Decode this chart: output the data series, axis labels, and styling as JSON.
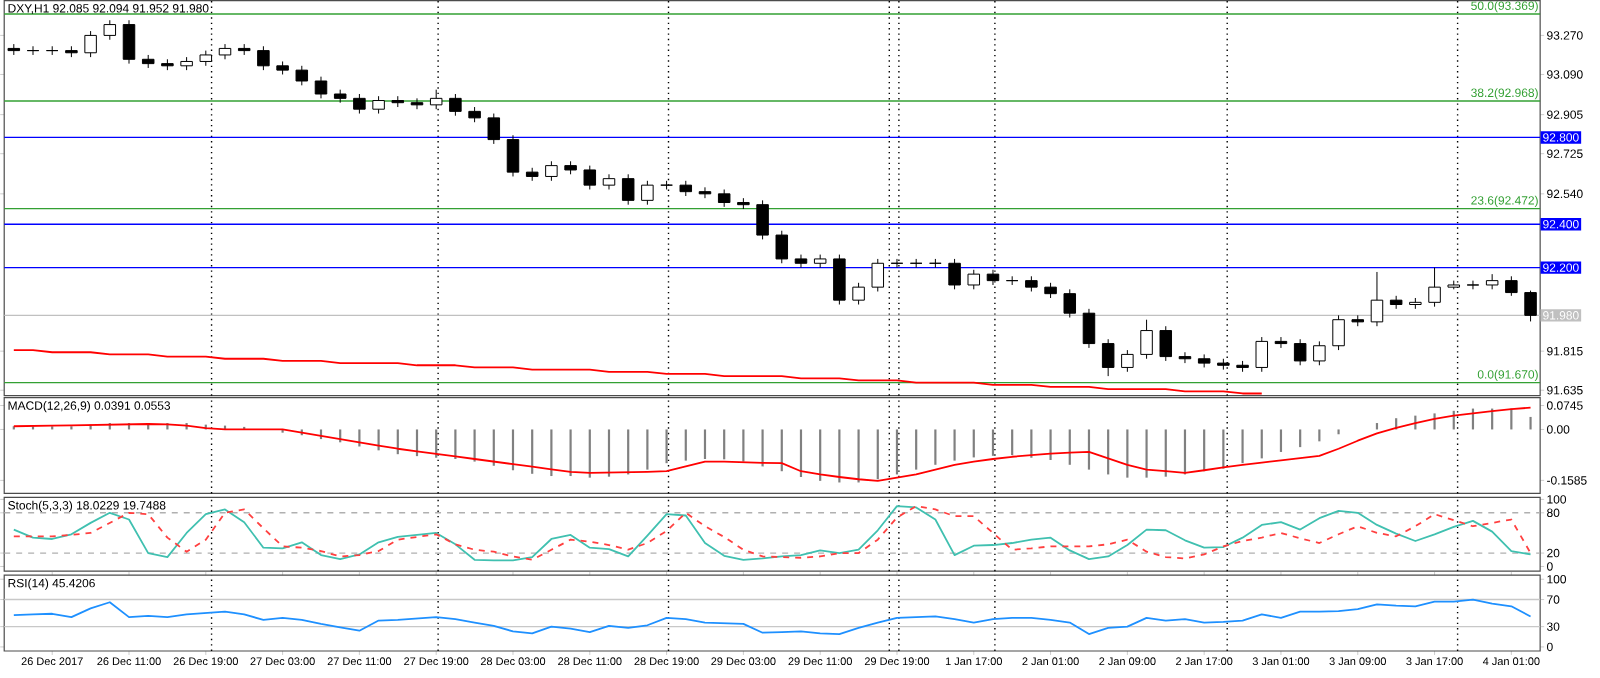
{
  "chart_data": [
    {
      "type": "candlestick",
      "title": "DXY,H1 92.085 92.094 91.952 91.980",
      "categories": [
        null,
        null,
        null,
        null,
        null,
        null,
        null,
        null,
        null,
        null,
        null,
        null,
        null,
        null,
        null,
        null,
        null,
        null,
        null,
        null,
        null,
        null,
        null,
        null,
        null,
        null,
        null,
        null,
        null,
        null,
        null,
        null,
        null,
        null,
        null,
        null,
        null,
        null,
        null,
        null,
        null,
        null,
        null,
        null,
        null,
        null,
        null,
        null,
        null,
        null,
        null,
        null,
        null,
        null,
        null,
        null,
        null,
        null,
        null,
        null,
        null,
        null,
        null,
        null,
        null,
        null,
        null,
        null,
        null,
        null,
        null,
        null,
        null,
        null,
        null,
        null,
        null,
        null,
        null,
        null
      ],
      "ohlc": [
        [
          93.21,
          93.23,
          93.18,
          93.2
        ],
        [
          93.2,
          93.22,
          93.18,
          93.2
        ],
        [
          93.2,
          93.22,
          93.18,
          93.2
        ],
        [
          93.2,
          93.22,
          93.17,
          93.19
        ],
        [
          93.19,
          93.29,
          93.17,
          93.27
        ],
        [
          93.27,
          93.34,
          93.25,
          93.32
        ],
        [
          93.32,
          93.34,
          93.14,
          93.16
        ],
        [
          93.16,
          93.18,
          93.12,
          93.14
        ],
        [
          93.14,
          93.16,
          93.11,
          93.13
        ],
        [
          93.13,
          93.17,
          93.11,
          93.15
        ],
        [
          93.15,
          93.2,
          93.13,
          93.18
        ],
        [
          93.18,
          93.23,
          93.16,
          93.21
        ],
        [
          93.21,
          93.23,
          93.18,
          93.2
        ],
        [
          93.2,
          93.22,
          93.11,
          93.13
        ],
        [
          93.13,
          93.15,
          93.09,
          93.11
        ],
        [
          93.11,
          93.13,
          93.04,
          93.06
        ],
        [
          93.06,
          93.08,
          92.98,
          93.0
        ],
        [
          93.0,
          93.02,
          92.96,
          92.98
        ],
        [
          92.98,
          93.0,
          92.91,
          92.93
        ],
        [
          92.93,
          92.99,
          92.91,
          92.97
        ],
        [
          92.97,
          92.99,
          92.94,
          92.96
        ],
        [
          92.96,
          92.98,
          92.93,
          92.95
        ],
        [
          92.95,
          93.02,
          92.93,
          92.98
        ],
        [
          92.98,
          93.0,
          92.9,
          92.92
        ],
        [
          92.92,
          92.94,
          92.87,
          92.89
        ],
        [
          92.89,
          92.91,
          92.77,
          92.79
        ],
        [
          92.79,
          92.81,
          92.62,
          92.64
        ],
        [
          92.64,
          92.66,
          92.6,
          92.62
        ],
        [
          92.62,
          92.69,
          92.6,
          92.67
        ],
        [
          92.67,
          92.69,
          92.63,
          92.65
        ],
        [
          92.65,
          92.67,
          92.56,
          92.58
        ],
        [
          92.58,
          92.63,
          92.56,
          92.61
        ],
        [
          92.61,
          92.63,
          92.49,
          92.51
        ],
        [
          92.51,
          92.6,
          92.49,
          92.58
        ],
        [
          92.58,
          92.6,
          92.56,
          92.58
        ],
        [
          92.58,
          92.6,
          92.53,
          92.55
        ],
        [
          92.55,
          92.57,
          92.52,
          92.54
        ],
        [
          92.54,
          92.56,
          92.48,
          92.5
        ],
        [
          92.5,
          92.52,
          92.47,
          92.49
        ],
        [
          92.49,
          92.51,
          92.33,
          92.35
        ],
        [
          92.35,
          92.37,
          92.22,
          92.24
        ],
        [
          92.24,
          92.26,
          92.2,
          92.22
        ],
        [
          92.22,
          92.26,
          92.2,
          92.24
        ],
        [
          92.24,
          92.26,
          92.03,
          92.05
        ],
        [
          92.05,
          92.13,
          92.03,
          92.11
        ],
        [
          92.11,
          92.24,
          92.09,
          92.22
        ],
        [
          92.22,
          92.24,
          92.2,
          92.22
        ],
        [
          92.22,
          92.24,
          92.2,
          92.22
        ],
        [
          92.22,
          92.24,
          92.2,
          92.22
        ],
        [
          92.22,
          92.24,
          92.1,
          92.12
        ],
        [
          92.12,
          92.19,
          92.1,
          92.17
        ],
        [
          92.17,
          92.19,
          92.12,
          92.14
        ],
        [
          92.14,
          92.16,
          92.12,
          92.14
        ],
        [
          92.14,
          92.16,
          92.09,
          92.11
        ],
        [
          92.11,
          92.13,
          92.06,
          92.08
        ],
        [
          92.08,
          92.1,
          91.97,
          91.99
        ],
        [
          91.99,
          92.01,
          91.83,
          91.85
        ],
        [
          91.85,
          91.87,
          91.7,
          91.74
        ],
        [
          91.74,
          91.82,
          91.72,
          91.8
        ],
        [
          91.8,
          91.96,
          91.78,
          91.91
        ],
        [
          91.91,
          91.93,
          91.77,
          91.79
        ],
        [
          91.79,
          91.81,
          91.76,
          91.78
        ],
        [
          91.78,
          91.8,
          91.74,
          91.76
        ],
        [
          91.76,
          91.78,
          91.73,
          91.75
        ],
        [
          91.75,
          91.77,
          91.72,
          91.74
        ],
        [
          91.74,
          91.88,
          91.72,
          91.86
        ],
        [
          91.86,
          91.88,
          91.83,
          91.85
        ],
        [
          91.85,
          91.87,
          91.75,
          91.77
        ],
        [
          91.77,
          91.86,
          91.75,
          91.84
        ],
        [
          91.84,
          91.98,
          91.82,
          91.96
        ],
        [
          91.96,
          91.98,
          91.93,
          91.95
        ],
        [
          91.95,
          92.18,
          91.93,
          92.05
        ],
        [
          92.05,
          92.07,
          92.01,
          92.03
        ],
        [
          92.03,
          92.06,
          92.01,
          92.04
        ],
        [
          92.04,
          92.2,
          92.02,
          92.11
        ],
        [
          92.11,
          92.14,
          92.1,
          92.12
        ],
        [
          92.12,
          92.14,
          92.1,
          92.12
        ],
        [
          92.12,
          92.17,
          92.1,
          92.14
        ],
        [
          92.14,
          92.16,
          92.07,
          92.085
        ],
        [
          92.085,
          92.094,
          91.952,
          91.98
        ]
      ],
      "series": [
        {
          "type": "line",
          "color": "#ff0000",
          "values": [
            91.82,
            91.82,
            91.81,
            91.81,
            91.81,
            91.8,
            91.8,
            91.8,
            91.79,
            91.79,
            91.79,
            91.78,
            91.78,
            91.78,
            91.77,
            91.77,
            91.77,
            91.76,
            91.76,
            91.76,
            91.76,
            91.75,
            91.75,
            91.75,
            91.74,
            91.74,
            91.74,
            91.73,
            91.73,
            91.73,
            91.73,
            91.72,
            91.72,
            91.72,
            91.71,
            91.71,
            91.71,
            91.7,
            91.7,
            91.7,
            91.7,
            91.69,
            91.69,
            91.69,
            91.68,
            91.68,
            91.68,
            91.67,
            91.67,
            91.67,
            91.67,
            91.66,
            91.66,
            91.66,
            91.65,
            91.65,
            91.65,
            91.64,
            91.64,
            91.64,
            91.64,
            91.63,
            91.63,
            91.63,
            91.62,
            91.62,
            null,
            null,
            null,
            null,
            null,
            null,
            null,
            null,
            null,
            null,
            null,
            null,
            null,
            null
          ]
        }
      ],
      "ylim": [
        91.61,
        93.43
      ],
      "yticks": [
        {
          "value": 91.635,
          "label": "91.635"
        },
        {
          "value": 91.815,
          "label": "91.815"
        },
        {
          "value": 92.54,
          "label": "92.540"
        },
        {
          "value": 92.725,
          "label": "92.725"
        },
        {
          "value": 92.905,
          "label": "92.905"
        },
        {
          "value": 93.09,
          "label": "93.090"
        },
        {
          "value": 93.27,
          "label": "93.270"
        }
      ],
      "tick_labels": "y",
      "ref_lines": [
        {
          "axis": "y",
          "value": 93.369,
          "color": "#33a033"
        },
        {
          "axis": "y",
          "value": 92.968,
          "color": "#33a033"
        },
        {
          "axis": "y",
          "value": 92.472,
          "color": "#33a033"
        },
        {
          "axis": "y",
          "value": 91.67,
          "color": "#33a033"
        },
        {
          "axis": "y",
          "value": 92.8,
          "label": "92.800",
          "color": "#0000ff"
        },
        {
          "axis": "y",
          "value": 92.4,
          "label": "92.400",
          "color": "#0000ff"
        },
        {
          "axis": "y",
          "value": 92.2,
          "label": "92.200",
          "color": "#0000ff"
        },
        {
          "axis": "y",
          "value": 91.98,
          "label": "91.980",
          "color": "#c0c0c0"
        }
      ],
      "grid": "x",
      "annotations": [
        {
          "text": "50.0(93.369)",
          "y": 93.369
        },
        {
          "text": "38.2(92.968)",
          "y": 92.968
        },
        {
          "text": "23.6(92.472)",
          "y": 92.472
        },
        {
          "text": "0.0(91.670)",
          "y": 91.67
        }
      ]
    },
    {
      "type": "bar",
      "title": "MACD(12,26,9) 0.0391 0.0553",
      "categories": [
        null,
        null,
        null,
        null,
        null,
        null,
        null,
        null,
        null,
        null,
        null,
        null,
        null,
        null,
        null,
        null,
        null,
        null,
        null,
        null,
        null,
        null,
        null,
        null,
        null,
        null,
        null,
        null,
        null,
        null,
        null,
        null,
        null,
        null,
        null,
        null,
        null,
        null,
        null,
        null,
        null,
        null,
        null,
        null,
        null,
        null,
        null,
        null,
        null,
        null,
        null,
        null,
        null,
        null,
        null,
        null,
        null,
        null,
        null,
        null,
        null,
        null,
        null,
        null,
        null,
        null,
        null,
        null,
        null,
        null,
        null,
        null,
        null,
        null,
        null,
        null,
        null,
        null,
        null,
        null
      ],
      "series": [
        {
          "color": "#808080",
          "values": [
            0.01,
            0.01,
            0.01,
            0.01,
            0.015,
            0.02,
            0.02,
            0.02,
            0.02,
            0.02,
            0.015,
            0.012,
            0.008,
            0.0,
            -0.01,
            -0.018,
            -0.03,
            -0.04,
            -0.053,
            -0.065,
            -0.077,
            -0.083,
            -0.088,
            -0.092,
            -0.1,
            -0.113,
            -0.127,
            -0.138,
            -0.145,
            -0.145,
            -0.15,
            -0.147,
            -0.14,
            -0.125,
            -0.105,
            -0.097,
            -0.092,
            -0.093,
            -0.1,
            -0.115,
            -0.13,
            -0.148,
            -0.16,
            -0.165,
            -0.165,
            -0.155,
            -0.14,
            -0.125,
            -0.11,
            -0.097,
            -0.087,
            -0.082,
            -0.08,
            -0.088,
            -0.095,
            -0.11,
            -0.125,
            -0.14,
            -0.15,
            -0.15,
            -0.147,
            -0.14,
            -0.13,
            -0.122,
            -0.105,
            -0.09,
            -0.07,
            -0.055,
            -0.037,
            -0.015,
            0.0,
            0.02,
            0.035,
            0.043,
            0.05,
            0.058,
            0.065,
            0.065,
            0.065,
            0.039
          ]
        },
        {
          "type": "line",
          "color": "#ff0000",
          "values": [
            0.01,
            0.011,
            0.012,
            0.013,
            0.014,
            0.015,
            0.016,
            0.017,
            0.016,
            0.012,
            0.004,
            0.0,
            0.0,
            0.0,
            0.0,
            -0.01,
            -0.02,
            -0.03,
            -0.04,
            -0.05,
            -0.06,
            -0.068,
            -0.076,
            -0.084,
            -0.092,
            -0.1,
            -0.108,
            -0.116,
            -0.124,
            -0.132,
            -0.135,
            -0.134,
            -0.133,
            -0.132,
            -0.13,
            -0.115,
            -0.1,
            -0.1,
            -0.102,
            -0.104,
            -0.105,
            -0.13,
            -0.14,
            -0.148,
            -0.155,
            -0.16,
            -0.15,
            -0.14,
            -0.125,
            -0.11,
            -0.1,
            -0.092,
            -0.085,
            -0.08,
            -0.075,
            -0.072,
            -0.07,
            -0.09,
            -0.11,
            -0.125,
            -0.13,
            -0.135,
            -0.127,
            -0.118,
            -0.11,
            -0.103,
            -0.096,
            -0.089,
            -0.082,
            -0.06,
            -0.035,
            -0.012,
            0.005,
            0.02,
            0.033,
            0.043,
            0.05,
            0.057,
            0.063,
            0.068
          ]
        }
      ],
      "ylim": [
        -0.199,
        0.099
      ],
      "yticks": [
        {
          "value": -0.1585,
          "label": "-0.1585"
        },
        {
          "value": 0,
          "label": "0.00"
        },
        {
          "value": 0.0745,
          "label": "0.0745"
        }
      ],
      "tick_labels": "y",
      "grid": "x"
    },
    {
      "type": "line",
      "title": "Stoch(5,3,3) 18.0229 19.7488",
      "categories": [
        null,
        null,
        null,
        null,
        null,
        null,
        null,
        null,
        null,
        null,
        null,
        null,
        null,
        null,
        null,
        null,
        null,
        null,
        null,
        null,
        null,
        null,
        null,
        null,
        null,
        null,
        null,
        null,
        null,
        null,
        null,
        null,
        null,
        null,
        null,
        null,
        null,
        null,
        null,
        null,
        null,
        null,
        null,
        null,
        null,
        null,
        null,
        null,
        null,
        null,
        null,
        null,
        null,
        null,
        null,
        null,
        null,
        null,
        null,
        null,
        null,
        null,
        null,
        null,
        null,
        null,
        null,
        null,
        null,
        null,
        null,
        null,
        null,
        null,
        null,
        null,
        null,
        null,
        null,
        null
      ],
      "series": [
        {
          "color": "#40c0b0",
          "values": [
            55,
            43,
            41,
            48,
            65,
            80,
            70,
            20,
            14,
            50,
            78,
            85,
            66,
            28,
            27,
            36,
            17,
            11,
            18,
            36,
            44,
            47,
            50,
            33,
            10,
            9,
            9,
            14,
            41,
            47,
            28,
            26,
            15,
            46,
            78,
            76,
            35,
            16,
            10,
            12,
            15,
            17,
            24,
            20,
            25,
            54,
            90,
            88,
            70,
            17,
            31,
            32,
            35,
            40,
            43,
            24,
            11,
            15,
            32,
            55,
            54,
            39,
            28,
            29,
            43,
            62,
            66,
            55,
            72,
            83,
            80,
            62,
            49,
            38,
            48,
            59,
            68,
            52,
            23,
            18
          ]
        },
        {
          "color": "#ff4040",
          "line_style": "dashed",
          "values": [
            45,
            45,
            45,
            47,
            50,
            65,
            80,
            78,
            43,
            22,
            40,
            80,
            85,
            57,
            30,
            28,
            23,
            15,
            17,
            23,
            40,
            44,
            48,
            33,
            25,
            22,
            15,
            10,
            25,
            40,
            37,
            32,
            25,
            35,
            53,
            80,
            60,
            44,
            25,
            15,
            14,
            13,
            15,
            20,
            20,
            40,
            73,
            90,
            85,
            75,
            75,
            50,
            25,
            27,
            30,
            30,
            30,
            33,
            40,
            22,
            14,
            12,
            18,
            30,
            38,
            43,
            50,
            42,
            35,
            48,
            60,
            50,
            45,
            60,
            78,
            69,
            60,
            65,
            70,
            20
          ]
        }
      ],
      "ylim": [
        -7,
        103
      ],
      "yticks": [
        0,
        20,
        80,
        100
      ],
      "tick_labels": "y",
      "ref_lines": [
        {
          "axis": "y",
          "value": 80,
          "color": "#b0b0b0",
          "line_style": "dashed"
        },
        {
          "axis": "y",
          "value": 20,
          "color": "#b0b0b0",
          "line_style": "dashed"
        }
      ],
      "grid": "x"
    },
    {
      "type": "line",
      "title": "RSI(14) 45.4206",
      "categories": [
        null,
        null,
        "26 Dec 2017",
        null,
        null,
        null,
        "26 Dec 11:00",
        null,
        null,
        null,
        "26 Dec 19:00",
        null,
        null,
        null,
        "27 Dec 03:00",
        null,
        null,
        null,
        "27 Dec 11:00",
        null,
        null,
        null,
        "27 Dec 19:00",
        null,
        null,
        null,
        "28 Dec 03:00",
        null,
        null,
        null,
        "28 Dec 11:00",
        null,
        null,
        null,
        "28 Dec 19:00",
        null,
        null,
        null,
        "29 Dec 03:00",
        null,
        null,
        null,
        "29 Dec 11:00",
        null,
        null,
        null,
        "29 Dec 19:00",
        null,
        null,
        null,
        "1 Jan 17:00",
        null,
        null,
        null,
        "2 Jan 01:00",
        null,
        null,
        null,
        "2 Jan 09:00",
        null,
        null,
        null,
        "2 Jan 17:00",
        null,
        null,
        null,
        "3 Jan 01:00",
        null,
        null,
        null,
        "3 Jan 09:00",
        null,
        null,
        null,
        "3 Jan 17:00",
        null,
        null,
        null,
        "4 Jan 01:00",
        null
      ],
      "series": [
        {
          "color": "#1e90ff",
          "values": [
            47,
            48,
            49,
            44,
            57,
            66,
            44,
            46,
            44,
            48,
            50,
            52,
            48,
            40,
            43,
            40,
            34,
            29,
            24,
            39,
            40,
            42,
            44,
            41,
            36,
            31,
            23,
            20,
            30,
            27,
            22,
            31,
            28,
            32,
            43,
            41,
            36,
            35,
            34,
            21,
            22,
            23,
            20,
            19,
            28,
            36,
            43,
            44,
            45,
            41,
            36,
            41,
            43,
            43,
            40,
            36,
            19,
            28,
            30,
            43,
            39,
            41,
            36,
            37,
            39,
            48,
            43,
            52,
            52,
            53,
            56,
            63,
            61,
            60,
            67,
            67,
            70,
            64,
            60,
            45
          ]
        }
      ],
      "ylim": [
        -6,
        106
      ],
      "yticks": [
        0,
        30,
        70,
        100
      ],
      "ref_lines": [
        {
          "axis": "y",
          "value": 70,
          "color": "#c8c8c8"
        },
        {
          "axis": "y",
          "value": 30,
          "color": "#c8c8c8"
        }
      ],
      "grid": "x"
    }
  ]
}
